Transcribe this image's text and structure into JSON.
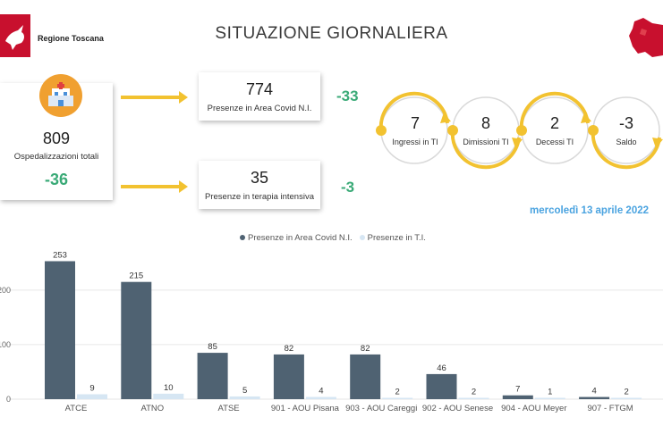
{
  "header": {
    "brand": "Regione Toscana",
    "title": "SITUAZIONE GIORNALIERA"
  },
  "kpis": {
    "total": {
      "value": "809",
      "label": "Ospedalizzazioni totali",
      "delta": "-36"
    },
    "covid_area": {
      "value": "774",
      "label": "Presenze in Area Covid N.I.",
      "delta": "-33"
    },
    "intensive": {
      "value": "35",
      "label": "Presenze in terapia intensiva",
      "delta": "-3"
    }
  },
  "ti_flow": [
    {
      "value": "7",
      "label": "Ingressi in TI"
    },
    {
      "value": "8",
      "label": "Dimissioni TI"
    },
    {
      "value": "2",
      "label": "Decessi TI"
    },
    {
      "value": "-3",
      "label": "Saldo"
    }
  ],
  "date": "mercoledì 13 aprile 2022",
  "colors": {
    "covid": "#4f6272",
    "ti": "#d6e6f3",
    "accent": "#f2c230",
    "positive": "#3aaa77",
    "date": "#4aa3e0"
  },
  "chart_data": {
    "type": "bar",
    "categories": [
      "ATCE",
      "ATNO",
      "ATSE",
      "901 - AOU Pisana",
      "903 - AOU Careggi",
      "902 - AOU Senese",
      "904 - AOU Meyer",
      "907 - FTGM"
    ],
    "series": [
      {
        "name": "Presenze in Area Covid N.I.",
        "values": [
          253,
          215,
          85,
          82,
          82,
          46,
          7,
          4
        ]
      },
      {
        "name": "Presenze in T.I.",
        "values": [
          9,
          10,
          5,
          4,
          2,
          2,
          1,
          2
        ]
      }
    ],
    "yticks": [
      "0",
      "100",
      "200"
    ],
    "ylim": [
      0,
      280
    ],
    "legend": "top-center",
    "grid": true
  }
}
